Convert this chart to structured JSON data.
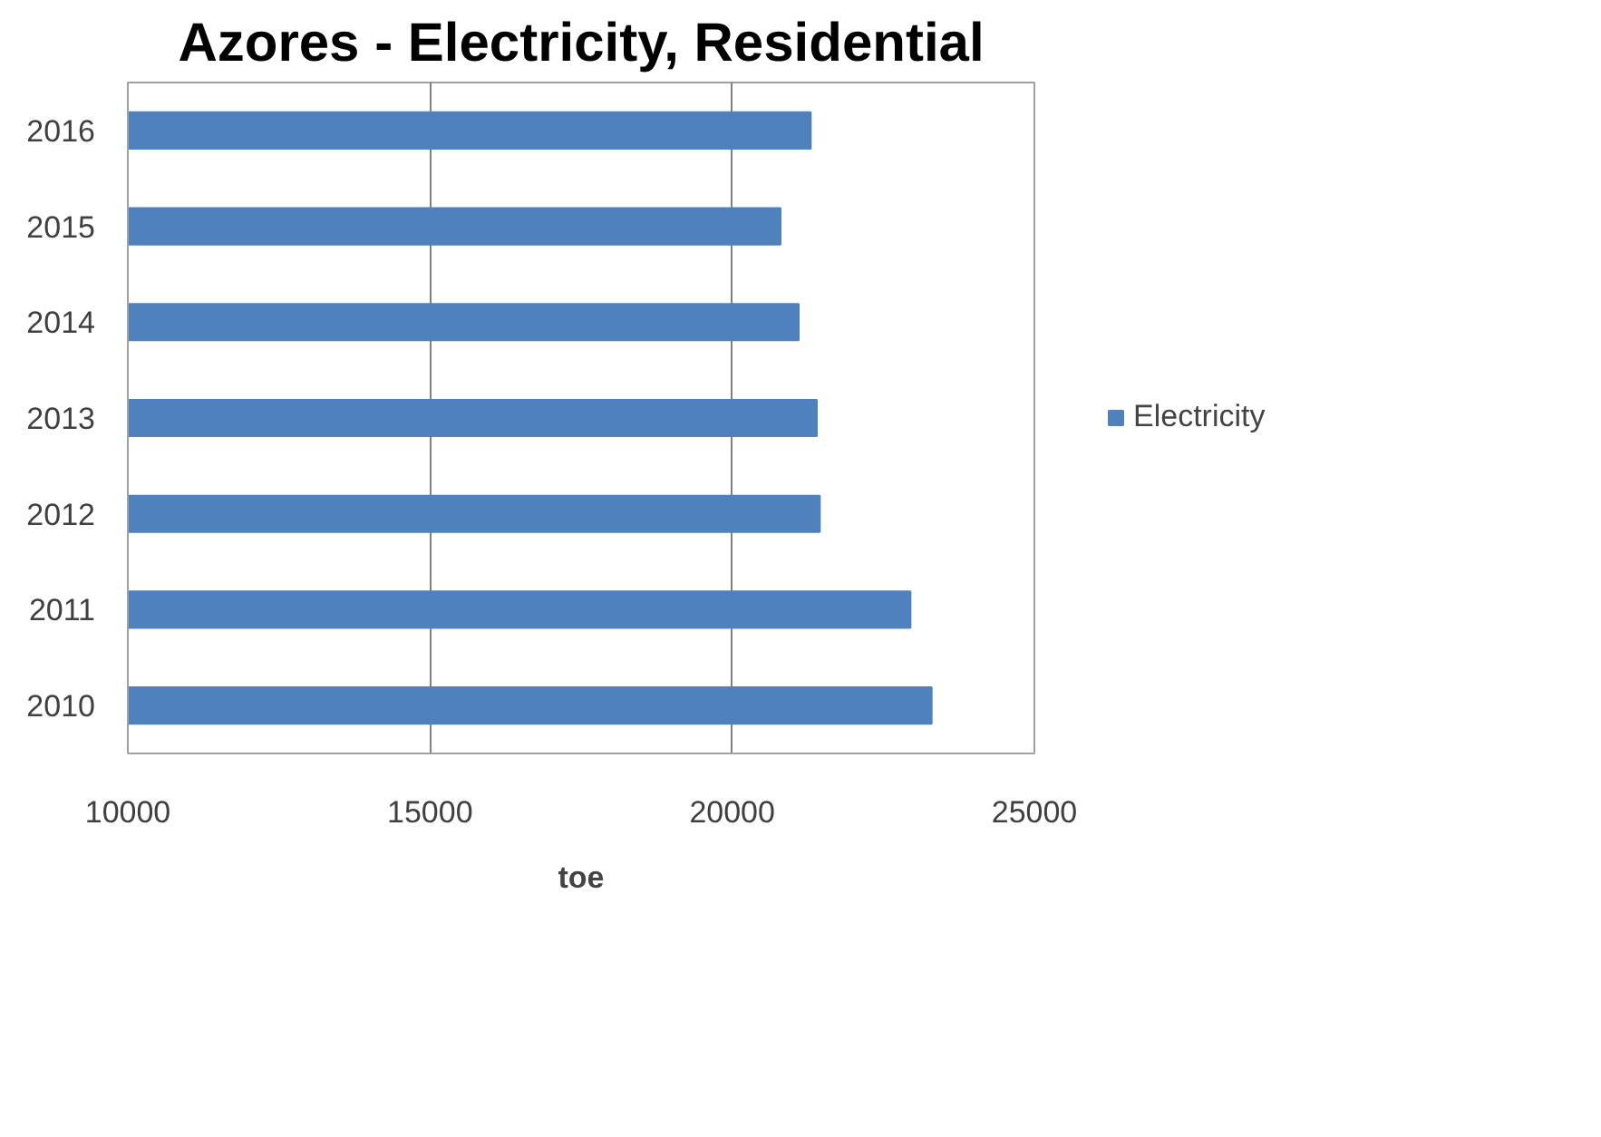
{
  "chart_data": {
    "type": "bar",
    "orientation": "horizontal",
    "title": "Azores - Electricity, Residential",
    "xlabel": "toe",
    "categories": [
      "2016",
      "2015",
      "2014",
      "2013",
      "2012",
      "2011",
      "2010"
    ],
    "series": [
      {
        "name": "Electricity",
        "color": "#4f81bd",
        "values": [
          21300,
          20800,
          21100,
          21400,
          21450,
          22950,
          23300
        ]
      }
    ],
    "xlim": [
      10000,
      25000
    ],
    "xticks": [
      10000,
      15000,
      20000,
      25000
    ],
    "grid": "x",
    "legend": "right"
  }
}
